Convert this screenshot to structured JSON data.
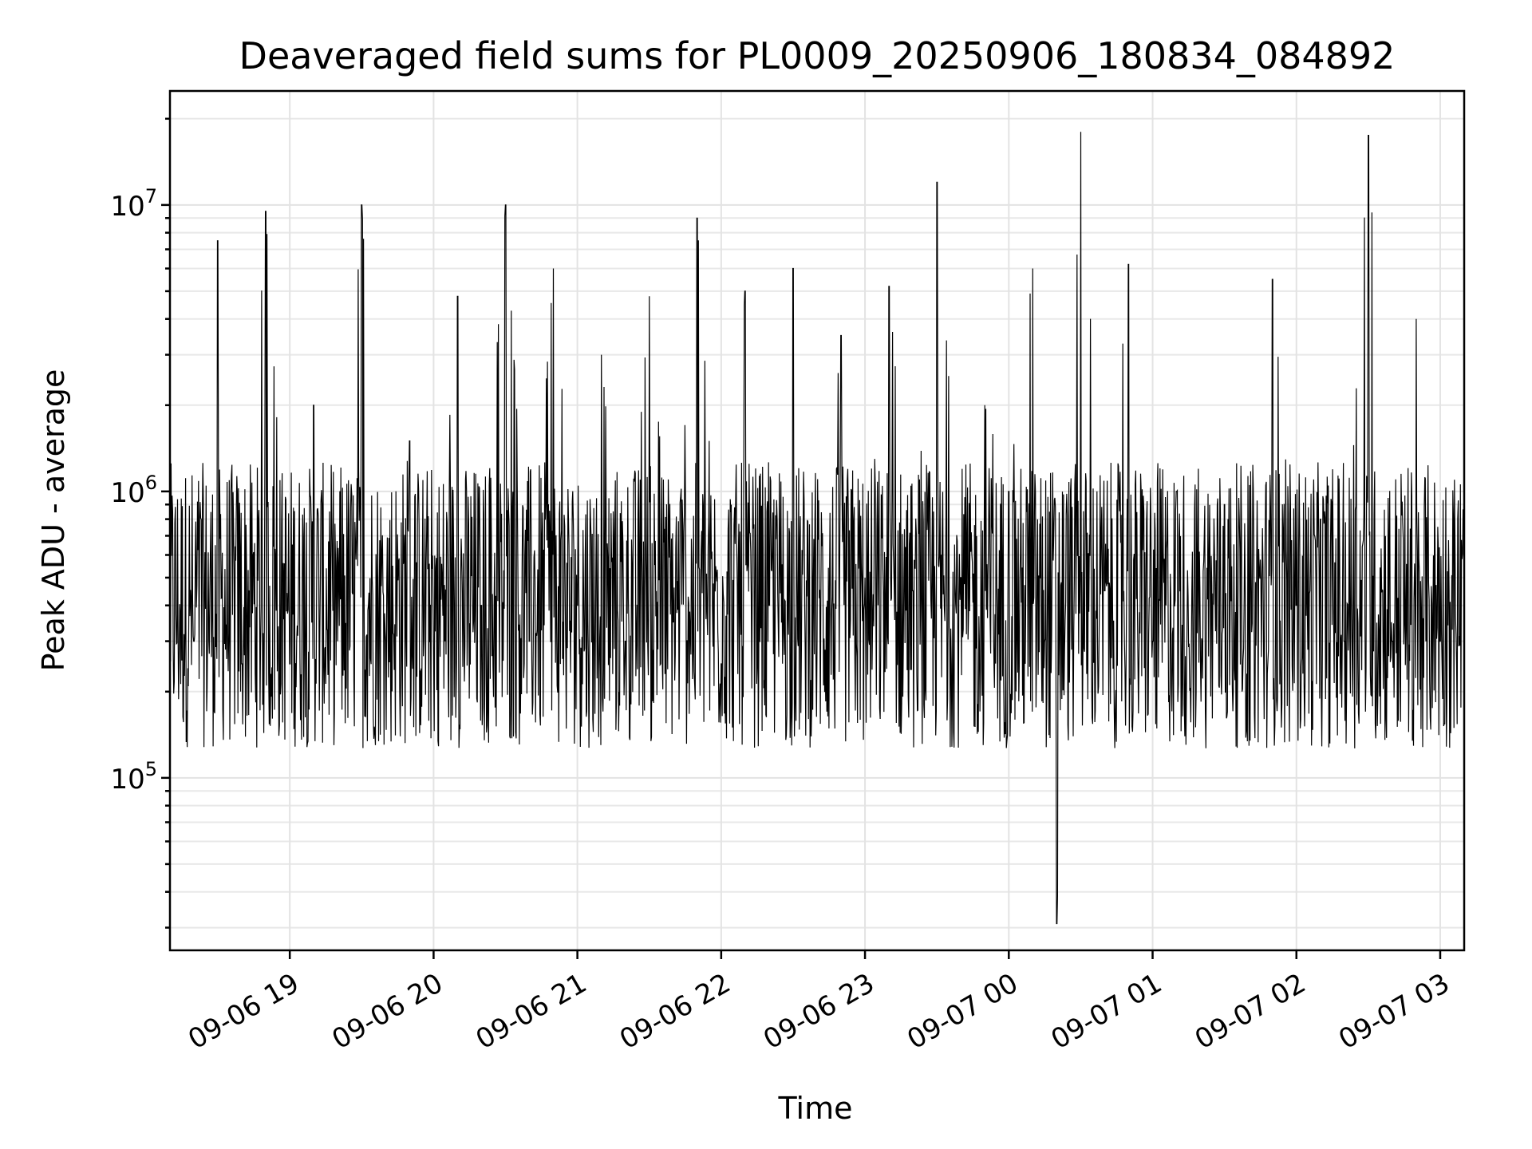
{
  "chart_data": {
    "type": "line",
    "title": "Deaveraged field sums for PL0009_20250906_180834_084892",
    "xlabel": "Time",
    "ylabel": "Peak ADU - average",
    "yscale": "log",
    "ylim": [
      25000,
      25000000
    ],
    "xlim": [
      "2025-09-06 18:10",
      "2025-09-07 03:10"
    ],
    "grid": true,
    "legend": "none",
    "line_color": "#000000",
    "x_ticks": [
      {
        "label": "09-06 19",
        "time": "2025-09-06 19:00"
      },
      {
        "label": "09-06 20",
        "time": "2025-09-06 20:00"
      },
      {
        "label": "09-06 21",
        "time": "2025-09-06 21:00"
      },
      {
        "label": "09-06 22",
        "time": "2025-09-06 22:00"
      },
      {
        "label": "09-06 23",
        "time": "2025-09-06 23:00"
      },
      {
        "label": "09-07 00",
        "time": "2025-09-07 00:00"
      },
      {
        "label": "09-07 01",
        "time": "2025-09-07 01:00"
      },
      {
        "label": "09-07 02",
        "time": "2025-09-07 02:00"
      },
      {
        "label": "09-07 03",
        "time": "2025-09-07 03:00"
      }
    ],
    "y_ticks": [
      {
        "base": "10",
        "exp": "5",
        "value": 100000
      },
      {
        "base": "10",
        "exp": "6",
        "value": 1000000
      },
      {
        "base": "10",
        "exp": "7",
        "value": 10000000
      }
    ],
    "series": [
      {
        "x": [
          "2025-09-06 18:10",
          "2025-09-06 18:20",
          "2025-09-06 18:30",
          "2025-09-06 18:40",
          "2025-09-06 18:50",
          "2025-09-06 19:00",
          "2025-09-06 19:10",
          "2025-09-06 19:20",
          "2025-09-06 19:30",
          "2025-09-06 19:40",
          "2025-09-06 19:50",
          "2025-09-06 20:00",
          "2025-09-06 20:10",
          "2025-09-06 20:20",
          "2025-09-06 20:30",
          "2025-09-06 20:40",
          "2025-09-06 20:50",
          "2025-09-06 21:00",
          "2025-09-06 21:10",
          "2025-09-06 21:20",
          "2025-09-06 21:30",
          "2025-09-06 21:40",
          "2025-09-06 21:50",
          "2025-09-06 22:00",
          "2025-09-06 22:10",
          "2025-09-06 22:20",
          "2025-09-06 22:30",
          "2025-09-06 22:40",
          "2025-09-06 22:50",
          "2025-09-06 23:00",
          "2025-09-06 23:10",
          "2025-09-06 23:20",
          "2025-09-06 23:30",
          "2025-09-06 23:40",
          "2025-09-06 23:50",
          "2025-09-07 00:00",
          "2025-09-07 00:10",
          "2025-09-07 00:20",
          "2025-09-07 00:30",
          "2025-09-07 00:40",
          "2025-09-07 00:50",
          "2025-09-07 01:00",
          "2025-09-07 01:10",
          "2025-09-07 01:20",
          "2025-09-07 01:30",
          "2025-09-07 01:40",
          "2025-09-07 01:50",
          "2025-09-07 02:00",
          "2025-09-07 02:10",
          "2025-09-07 02:20",
          "2025-09-07 02:30",
          "2025-09-07 02:40",
          "2025-09-07 02:50",
          "2025-09-07 03:00",
          "2025-09-07 03:10"
        ],
        "y": [
          1000000,
          300000,
          7500000,
          250000,
          9500000,
          250000,
          2000000,
          300000,
          10000000,
          300000,
          1500000,
          250000,
          4800000,
          400000,
          10000000,
          300000,
          6000000,
          400000,
          3000000,
          300000,
          4800000,
          350000,
          9000000,
          250000,
          5000000,
          400000,
          6000000,
          300000,
          3500000,
          500000,
          5200000,
          450000,
          12000000,
          500000,
          2000000,
          1000000,
          6000000,
          31000,
          18000000,
          450000,
          6200000,
          300000,
          1000000,
          250000,
          900000,
          400000,
          5500000,
          400000,
          800000,
          300000,
          17500000,
          300000,
          4000000,
          300000,
          900000
        ]
      }
    ]
  }
}
